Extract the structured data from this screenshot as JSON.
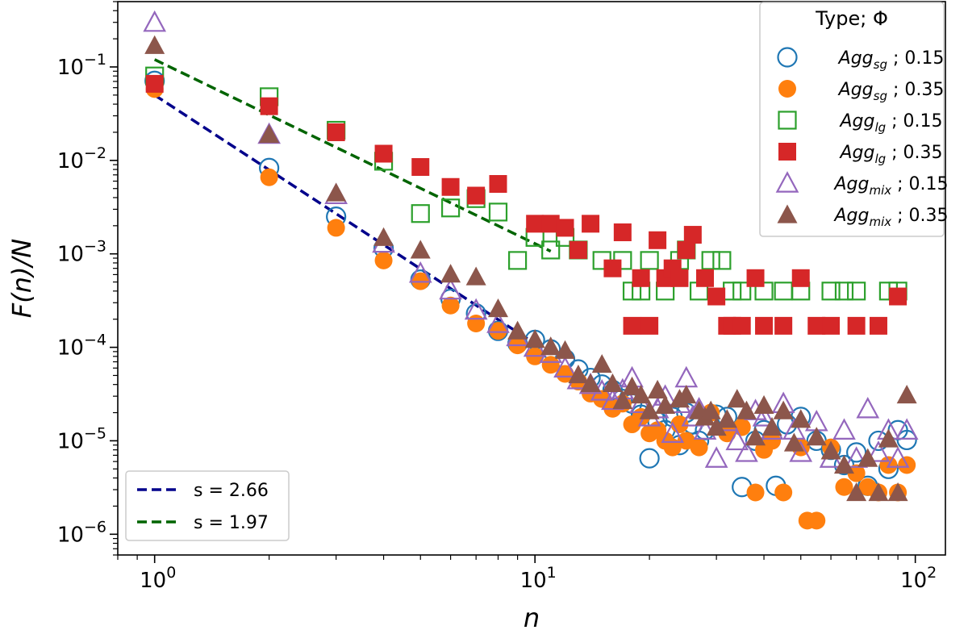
{
  "chart_data": {
    "type": "scatter",
    "title": "",
    "xlabel": "n",
    "ylabel": "F(n)/N",
    "x_scale": "log",
    "y_scale": "log",
    "xlim": [
      0.8,
      120
    ],
    "ylim": [
      6e-07,
      0.5
    ],
    "x_ticks": [
      {
        "value": 1,
        "base": "10",
        "exp": "0"
      },
      {
        "value": 10,
        "base": "10",
        "exp": "1"
      },
      {
        "value": 100,
        "base": "10",
        "exp": "2"
      }
    ],
    "y_ticks": [
      {
        "value": 1e-06,
        "base": "10",
        "exp": "−6"
      },
      {
        "value": 1e-05,
        "base": "10",
        "exp": "−5"
      },
      {
        "value": 0.0001,
        "base": "10",
        "exp": "−4"
      },
      {
        "value": 0.001,
        "base": "10",
        "exp": "−3"
      },
      {
        "value": 0.01,
        "base": "10",
        "exp": "−2"
      },
      {
        "value": 0.1,
        "base": "10",
        "exp": "−1"
      }
    ],
    "grid": false,
    "legend_title": "Type; Φ",
    "legend_position": "top-right",
    "fit_legend_position": "bottom-left",
    "series": [
      {
        "base": "Agg",
        "sub": "sg",
        "phi": " ; 0.15",
        "marker": "circle",
        "filled": false,
        "color": "#1f77b4",
        "x": [
          1,
          2,
          3,
          4,
          5,
          6,
          7,
          8,
          9,
          10,
          11,
          12,
          13,
          14,
          15,
          16,
          17,
          18,
          19,
          20,
          21,
          22,
          23,
          24,
          25,
          26,
          27,
          28,
          30,
          32,
          35,
          38,
          40,
          43,
          46,
          50,
          55,
          60,
          65,
          70,
          75,
          80,
          85,
          90,
          95
        ],
        "y": [
          0.071,
          0.0083,
          0.0025,
          0.00115,
          0.00053,
          0.00033,
          0.00023,
          0.00015,
          0.00011,
          0.00012,
          9.5e-05,
          7.5e-05,
          5.8e-05,
          4.7e-05,
          4e-05,
          3.5e-05,
          2.8e-05,
          2.5e-05,
          1.9e-05,
          6.5e-06,
          1.6e-05,
          1.3e-05,
          1.8e-05,
          9e-06,
          2e-05,
          1.5e-05,
          1e-05,
          1.3e-05,
          1.9e-05,
          1.8e-05,
          3.2e-06,
          1e-05,
          1.3e-05,
          3.3e-06,
          1.5e-05,
          1.8e-05,
          1e-05,
          8e-06,
          5.5e-06,
          7.5e-06,
          3.3e-06,
          1e-05,
          5e-06,
          1.3e-05,
          1.02e-05
        ]
      },
      {
        "base": "Agg",
        "sub": "sg",
        "phi": " ; 0.35",
        "marker": "circle",
        "filled": true,
        "color": "#ff7f0e",
        "x": [
          1,
          2,
          3,
          4,
          5,
          6,
          7,
          8,
          9,
          10,
          11,
          12,
          13,
          14,
          15,
          16,
          17,
          18,
          19,
          20,
          21,
          22,
          23,
          24,
          25,
          27,
          29,
          32,
          35,
          38,
          40,
          42,
          45,
          50,
          52,
          55,
          60,
          65,
          70,
          75,
          80,
          85,
          90,
          95
        ],
        "y": [
          0.058,
          0.0066,
          0.0019,
          0.00085,
          0.00051,
          0.00028,
          0.00018,
          0.00015,
          0.000105,
          8e-05,
          6.5e-05,
          5.2e-05,
          4.3e-05,
          3.2e-05,
          2.8e-05,
          2.2e-05,
          2.5e-05,
          1.5e-05,
          1.8e-05,
          1.2e-05,
          1.3e-05,
          1e-05,
          8.5e-06,
          1.5e-05,
          1e-05,
          8.5e-06,
          2e-05,
          1.2e-05,
          1.4e-05,
          2.8e-06,
          8e-06,
          1e-05,
          2.8e-06,
          8.5e-06,
          1.4e-06,
          1.4e-06,
          8.5e-06,
          3.2e-06,
          4.5e-06,
          3.2e-06,
          2.8e-06,
          5.5e-06,
          2.8e-06,
          5.5e-06
        ]
      },
      {
        "base": "Agg",
        "sub": "lg",
        "phi": " ; 0.15",
        "marker": "square",
        "filled": false,
        "color": "#2ca02c",
        "x": [
          1,
          2,
          3,
          4,
          5,
          6,
          7,
          8,
          9,
          10,
          11,
          12,
          13,
          15,
          17,
          18,
          19,
          20,
          22,
          24,
          25,
          27,
          29,
          31,
          33,
          35,
          40,
          45,
          50,
          60,
          65,
          70,
          85,
          90
        ],
        "y": [
          0.08,
          0.048,
          0.021,
          0.0098,
          0.0027,
          0.0031,
          0.0039,
          0.0028,
          0.00085,
          0.0015,
          0.0011,
          0.0015,
          0.0011,
          0.00085,
          0.00085,
          0.0004,
          0.0004,
          0.00085,
          0.0004,
          0.00085,
          0.0011,
          0.0004,
          0.00085,
          0.00085,
          0.0004,
          0.0004,
          0.0004,
          0.0004,
          0.0004,
          0.0004,
          0.0004,
          0.0004,
          0.0004,
          0.0004
        ]
      },
      {
        "base": "Agg",
        "sub": "lg",
        "phi": " ; 0.35",
        "marker": "square",
        "filled": true,
        "color": "#d62728",
        "x": [
          1,
          2,
          3,
          4,
          5,
          6,
          7,
          8,
          10,
          11,
          12,
          13,
          14,
          16,
          17,
          18,
          19,
          20,
          21,
          22,
          23,
          24,
          25,
          26,
          28,
          30,
          32,
          33,
          35,
          38,
          40,
          45,
          50,
          55,
          60,
          70,
          80,
          90
        ],
        "y": [
          0.066,
          0.038,
          0.02,
          0.0118,
          0.0085,
          0.0052,
          0.0042,
          0.0056,
          0.0021,
          0.0021,
          0.0019,
          0.0011,
          0.0021,
          0.0007,
          0.0017,
          0.00017,
          0.00055,
          0.00017,
          0.0014,
          0.00055,
          0.0007,
          0.00055,
          0.0011,
          0.0016,
          0.00055,
          0.00035,
          0.00017,
          0.00017,
          0.00017,
          0.00055,
          0.00017,
          0.00017,
          0.00055,
          0.00017,
          0.00017,
          0.00017,
          0.00017,
          0.00035
        ]
      },
      {
        "base": "Agg",
        "sub": "mix",
        "phi": " ; 0.15",
        "marker": "triangle",
        "filled": false,
        "color": "#9467bd",
        "x": [
          1,
          2,
          3,
          4,
          5,
          6,
          7,
          8,
          9,
          10,
          11,
          12,
          13,
          14,
          15,
          16,
          17,
          18,
          19,
          20,
          21,
          22,
          23,
          24,
          25,
          26,
          27,
          28,
          30,
          32,
          34,
          36,
          38,
          40,
          42,
          45,
          48,
          50,
          55,
          60,
          65,
          70,
          75,
          80,
          85,
          90,
          95
        ],
        "y": [
          0.3,
          0.019,
          0.0043,
          0.0013,
          0.00062,
          0.00041,
          0.00025,
          0.00018,
          0.00013,
          0.0001,
          8.6e-05,
          6e-05,
          4.5e-05,
          4e-05,
          3.4e-05,
          2.7e-05,
          3.5e-05,
          4.7e-05,
          2.5e-05,
          1.8e-05,
          2.2e-05,
          3e-05,
          1.2e-05,
          2.5e-05,
          4.7e-05,
          1.8e-05,
          2.2e-05,
          1.3e-05,
          6.5e-06,
          1.6e-05,
          1e-05,
          7.5e-06,
          2.1e-05,
          1.8e-05,
          1.3e-05,
          2.5e-05,
          1.3e-05,
          7.5e-06,
          1.6e-05,
          6.5e-06,
          1.3e-05,
          6.5e-06,
          2.2e-05,
          7.5e-06,
          1.3e-05,
          6.5e-06,
          1.3e-05
        ]
      },
      {
        "base": "Agg",
        "sub": "mix",
        "phi": " ; 0.35",
        "marker": "triangle",
        "filled": true,
        "color": "#8c564b",
        "x": [
          1,
          2,
          3,
          4,
          5,
          6,
          7,
          8,
          9,
          10,
          11,
          12,
          13,
          14,
          15,
          16,
          17,
          18,
          19,
          20,
          21,
          22,
          24,
          25,
          27,
          28,
          29,
          30,
          32,
          34,
          36,
          38,
          40,
          42,
          45,
          48,
          50,
          55,
          60,
          65,
          70,
          75,
          80,
          85,
          90,
          95
        ],
        "y": [
          0.17,
          0.019,
          0.0045,
          0.0015,
          0.0011,
          0.00061,
          0.00057,
          0.00026,
          0.00015,
          0.000122,
          0.000102,
          9.3e-05,
          5.1e-05,
          4.1e-05,
          6.6e-05,
          4.1e-05,
          2.7e-05,
          3.8e-05,
          3.1e-05,
          2.1e-05,
          3.5e-05,
          2.4e-05,
          2.8e-05,
          3.1e-05,
          2.1e-05,
          1.8e-05,
          2.1e-05,
          1.4e-05,
          1.7e-05,
          2.8e-05,
          2.1e-05,
          1.1e-05,
          2.4e-05,
          1.4e-05,
          2.1e-05,
          9.5e-06,
          1.7e-05,
          1.1e-05,
          7.8e-06,
          5.5e-06,
          2.8e-06,
          6.5e-06,
          2.8e-06,
          1.05e-05,
          2.8e-06,
          3.1e-05
        ]
      }
    ],
    "fits": [
      {
        "label": "s = 2.66",
        "slope": 2.66,
        "amplitude": 0.05,
        "x_range": [
          1,
          10
        ],
        "color": "#00008b"
      },
      {
        "label": "s = 1.97",
        "slope": 1.97,
        "amplitude": 0.12,
        "x_range": [
          1,
          11
        ],
        "color": "#006400"
      }
    ]
  }
}
